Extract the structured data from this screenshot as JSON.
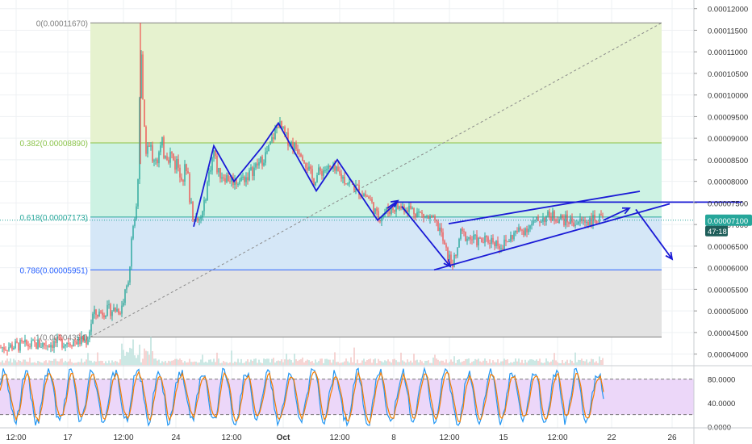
{
  "chart_data": [
    {
      "type": "candlestick",
      "title": "",
      "x_ticks": [
        "12:00",
        "17",
        "12:00",
        "24",
        "12:00",
        "Oct",
        "12:00",
        "8",
        "12:00",
        "15",
        "12:00",
        "22",
        "26"
      ],
      "y_ticks": [
        "0.00012000",
        "0.00011500",
        "0.00011000",
        "0.00010500",
        "0.00010000",
        "0.00009500",
        "0.00009000",
        "0.00008500",
        "0.00008000",
        "0.00007500",
        "0.00007000",
        "0.00006500",
        "0.00006000",
        "0.00005500",
        "0.00005000",
        "0.00004500",
        "0.00004000"
      ],
      "ylim": [
        3.75e-05,
        0.000122
      ],
      "current_price": "0.00007100",
      "countdown": "47:18",
      "fib_levels": [
        {
          "label": "0(0.00011670)",
          "value": 0.0001167,
          "color": "#808080"
        },
        {
          "label": "0.382(0.00008890)",
          "value": 8.89e-05,
          "color": "#8bc34a"
        },
        {
          "label": "0.618(0.00007173)",
          "value": 7.173e-05,
          "color": "#26a69a"
        },
        {
          "label": "0.786(0.00005951)",
          "value": 5.951e-05,
          "color": "#2962ff"
        },
        {
          "label": "1(0.00004394)",
          "value": 4.394e-05,
          "color": "#808080"
        }
      ],
      "price_path": [
        [
          0,
          4.15e-05
        ],
        [
          25,
          4.2e-05
        ],
        [
          50,
          4.22e-05
        ],
        [
          80,
          4.28e-05
        ],
        [
          108,
          4.32e-05
        ],
        [
          115,
          4.9e-05
        ],
        [
          130,
          5e-05
        ],
        [
          150,
          5.05e-05
        ],
        [
          158,
          5.6e-05
        ],
        [
          163,
          6.5e-05
        ],
        [
          168,
          7e-05
        ],
        [
          172,
          8.5e-05
        ],
        [
          174,
          0.0001167
        ],
        [
          178,
          9e-05
        ],
        [
          185,
          8.7e-05
        ],
        [
          195,
          8.6e-05
        ],
        [
          205,
          8.8e-05
        ],
        [
          215,
          8.5e-05
        ],
        [
          225,
          8.3e-05
        ],
        [
          232,
          8.1e-05
        ],
        [
          238,
          7.4e-05
        ],
        [
          245,
          7e-05
        ],
        [
          252,
          7.3e-05
        ],
        [
          258,
          8.1e-05
        ],
        [
          265,
          8.7e-05
        ],
        [
          270,
          8.2e-05
        ],
        [
          280,
          8.1e-05
        ],
        [
          292,
          8e-05
        ],
        [
          305,
          8.1e-05
        ],
        [
          315,
          8.3e-05
        ],
        [
          325,
          8.5e-05
        ],
        [
          332,
          8.7e-05
        ],
        [
          345,
          9.35e-05
        ],
        [
          355,
          9e-05
        ],
        [
          365,
          8.8e-05
        ],
        [
          373,
          8.7e-05
        ],
        [
          380,
          8.4e-05
        ],
        [
          388,
          8e-05
        ],
        [
          395,
          8.2e-05
        ],
        [
          405,
          8.3e-05
        ],
        [
          418,
          8.2e-05
        ],
        [
          430,
          8e-05
        ],
        [
          445,
          7.8e-05
        ],
        [
          458,
          7.6e-05
        ],
        [
          468,
          7.15e-05
        ],
        [
          478,
          7.3e-05
        ],
        [
          490,
          7.4e-05
        ],
        [
          505,
          7.4e-05
        ],
        [
          520,
          7.25e-05
        ],
        [
          535,
          7.1e-05
        ],
        [
          545,
          6.9e-05
        ],
        [
          552,
          6.4e-05
        ],
        [
          560,
          6.1e-05
        ],
        [
          565,
          6.2e-05
        ],
        [
          570,
          6.8e-05
        ],
        [
          580,
          6.7e-05
        ],
        [
          595,
          6.6e-05
        ],
        [
          610,
          6.65e-05
        ],
        [
          622,
          6.5e-05
        ],
        [
          628,
          6.6e-05
        ],
        [
          638,
          6.8e-05
        ],
        [
          650,
          6.9e-05
        ],
        [
          660,
          7e-05
        ],
        [
          672,
          7.15e-05
        ],
        [
          685,
          7.2e-05
        ],
        [
          700,
          7.1e-05
        ],
        [
          715,
          7.05e-05
        ],
        [
          730,
          7.1e-05
        ],
        [
          748,
          7.1e-05
        ]
      ],
      "stochastic": {
        "y_ticks": [
          "80.0000",
          "40.0000",
          "0.0000"
        ],
        "band": [
          20,
          80
        ],
        "ylim": [
          -5,
          100
        ]
      }
    }
  ],
  "colors": {
    "up": "#26a69a",
    "down": "#ef5350",
    "drawing": "#1a1ad6",
    "price_badge": "#26a69a",
    "countdown_badge": "#1e5e5a"
  }
}
